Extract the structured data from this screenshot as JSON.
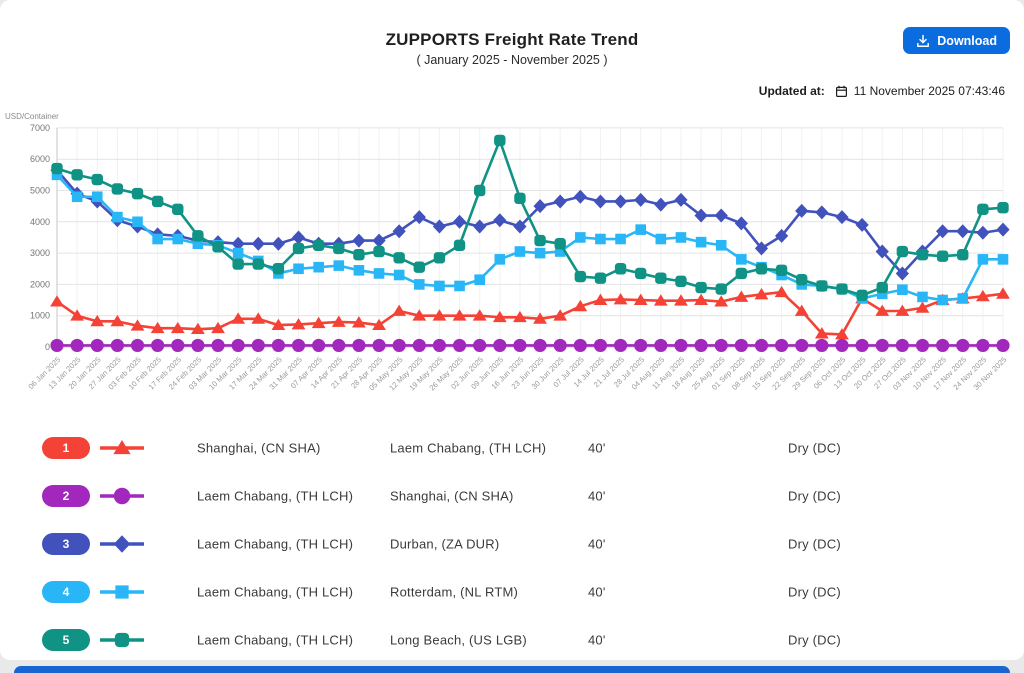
{
  "header": {
    "title": "ZUPPORTS Freight Rate Trend",
    "subtitle": "( January 2025 - November 2025 )",
    "download_label": "Download",
    "updated_at_label": "Updated at:",
    "updated_at_value": "11 November 2025 07:43:46"
  },
  "colors": {
    "download_button": "#0b6ce0",
    "footer_bar": "#1866d2",
    "series_red": "#f44336",
    "series_purple": "#a228bd",
    "series_indigo": "#4252bd",
    "series_lightblue": "#29b6f6",
    "series_teal": "#109384"
  },
  "chart_data": {
    "type": "line",
    "title": "ZUPPORTS Freight Rate Trend",
    "subtitle": "( January 2025 - November 2025 )",
    "ylabel": "USD/Container",
    "ylim": [
      0,
      7000
    ],
    "yticks": [
      0,
      1000,
      2000,
      3000,
      4000,
      5000,
      6000,
      7000
    ],
    "grid": true,
    "legend_position": "bottom-table",
    "x": [
      "06 Jan 2025",
      "13 Jan 2025",
      "20 Jan 2025",
      "27 Jan 2025",
      "03 Feb 2025",
      "10 Feb 2025",
      "17 Feb 2025",
      "24 Feb 2025",
      "03 Mar 2025",
      "10 Mar 2025",
      "17 Mar 2025",
      "24 Mar 2025",
      "31 Mar 2025",
      "07 Apr 2025",
      "14 Apr 2025",
      "21 Apr 2025",
      "28 Apr 2025",
      "05 May 2025",
      "12 May 2025",
      "19 May 2025",
      "26 May 2025",
      "02 Jun 2025",
      "09 Jun 2025",
      "16 Jun 2025",
      "23 Jun 2025",
      "30 Jun 2025",
      "07 Jul 2025",
      "14 Jul 2025",
      "21 Jul 2025",
      "28 Jul 2025",
      "04 Aug 2025",
      "11 Aug 2025",
      "18 Aug 2025",
      "25 Aug 2025",
      "01 Sep 2025",
      "08 Sep 2025",
      "15 Sep 2025",
      "22 Sep 2025",
      "29 Sep 2025",
      "06 Oct 2025",
      "13 Oct 2025",
      "20 Oct 2025",
      "27 Oct 2025",
      "03 Nov 2025",
      "10 Nov 2025",
      "17 Nov 2025",
      "24 Nov 2025",
      "30 Nov 2025"
    ],
    "series": [
      {
        "name": "Shanghai, (CN SHA) to Laem Chabang, (TH LCH)",
        "color": "#f44336",
        "marker": "triangle",
        "values": [
          1450,
          1000,
          820,
          820,
          680,
          600,
          600,
          570,
          600,
          900,
          900,
          700,
          720,
          760,
          800,
          780,
          700,
          1150,
          1000,
          1000,
          1000,
          1000,
          950,
          950,
          900,
          1000,
          1300,
          1500,
          1520,
          1500,
          1480,
          1480,
          1500,
          1450,
          1600,
          1680,
          1750,
          1150,
          430,
          400,
          1550,
          1150,
          1150,
          1250,
          1500,
          1550,
          1620,
          1700
        ]
      },
      {
        "name": "Laem Chabang, (TH LCH) to Shanghai, (CN SHA)",
        "color": "#a228bd",
        "marker": "circle",
        "values": [
          50,
          50,
          50,
          50,
          50,
          50,
          50,
          50,
          50,
          50,
          50,
          50,
          50,
          50,
          50,
          50,
          50,
          50,
          50,
          50,
          50,
          50,
          50,
          50,
          50,
          50,
          50,
          50,
          50,
          50,
          50,
          50,
          50,
          50,
          50,
          50,
          50,
          50,
          50,
          50,
          50,
          50,
          50,
          50,
          50,
          50,
          50,
          50
        ]
      },
      {
        "name": "Laem Chabang, (TH LCH) to Durban, (ZA DUR)",
        "color": "#4252bd",
        "marker": "diamond",
        "values": [
          5650,
          4900,
          4650,
          4050,
          3850,
          3600,
          3550,
          3400,
          3350,
          3300,
          3300,
          3300,
          3500,
          3300,
          3300,
          3400,
          3400,
          3700,
          4150,
          3850,
          4000,
          3850,
          4050,
          3850,
          4500,
          4650,
          4800,
          4650,
          4650,
          4700,
          4550,
          4700,
          4200,
          4200,
          3950,
          3150,
          3550,
          4350,
          4300,
          4150,
          3900,
          3050,
          2350,
          3050,
          3700,
          3700,
          3650,
          3750
        ]
      },
      {
        "name": "Laem Chabang, (TH LCH) to Rotterdam, (NL RTM)",
        "color": "#29b6f6",
        "marker": "square",
        "values": [
          5500,
          4800,
          4800,
          4150,
          4000,
          3450,
          3450,
          3300,
          3250,
          3000,
          2750,
          2350,
          2500,
          2550,
          2600,
          2450,
          2350,
          2300,
          2000,
          1950,
          1950,
          2150,
          2800,
          3050,
          3000,
          3050,
          3500,
          3450,
          3450,
          3750,
          3450,
          3500,
          3350,
          3250,
          2800,
          2550,
          2300,
          2000,
          1950,
          1850,
          1550,
          1700,
          1830,
          1600,
          1500,
          1550,
          2800,
          2800
        ]
      },
      {
        "name": "Laem Chabang, (TH LCH) to Long Beach, (US LGB)",
        "color": "#109384",
        "marker": "round-square",
        "values": [
          5700,
          5500,
          5350,
          5050,
          4900,
          4650,
          4400,
          3550,
          3200,
          2650,
          2650,
          2500,
          3150,
          3250,
          3150,
          2950,
          3050,
          2850,
          2550,
          2850,
          3250,
          5000,
          6600,
          4750,
          3400,
          3300,
          2250,
          2200,
          2500,
          2350,
          2200,
          2100,
          1900,
          1850,
          2350,
          2500,
          2450,
          2150,
          1950,
          1850,
          1650,
          1900,
          3050,
          2950,
          2900,
          2950,
          4400,
          4450
        ]
      }
    ]
  },
  "legend_table": {
    "rows": [
      {
        "num": "1",
        "color": "#f44336",
        "marker": "triangle",
        "origin": "Shanghai, (CN SHA)",
        "destination": "Laem Chabang, (TH LCH)",
        "size": "40'",
        "type": "Dry (DC)"
      },
      {
        "num": "2",
        "color": "#a228bd",
        "marker": "circle",
        "origin": "Laem Chabang, (TH LCH)",
        "destination": "Shanghai, (CN SHA)",
        "size": "40'",
        "type": "Dry (DC)"
      },
      {
        "num": "3",
        "color": "#4252bd",
        "marker": "diamond",
        "origin": "Laem Chabang, (TH LCH)",
        "destination": "Durban, (ZA DUR)",
        "size": "40'",
        "type": "Dry (DC)"
      },
      {
        "num": "4",
        "color": "#29b6f6",
        "marker": "square",
        "origin": "Laem Chabang, (TH LCH)",
        "destination": "Rotterdam, (NL RTM)",
        "size": "40'",
        "type": "Dry (DC)"
      },
      {
        "num": "5",
        "color": "#109384",
        "marker": "round-square",
        "origin": "Laem Chabang, (TH LCH)",
        "destination": "Long Beach, (US LGB)",
        "size": "40'",
        "type": "Dry (DC)"
      }
    ]
  }
}
